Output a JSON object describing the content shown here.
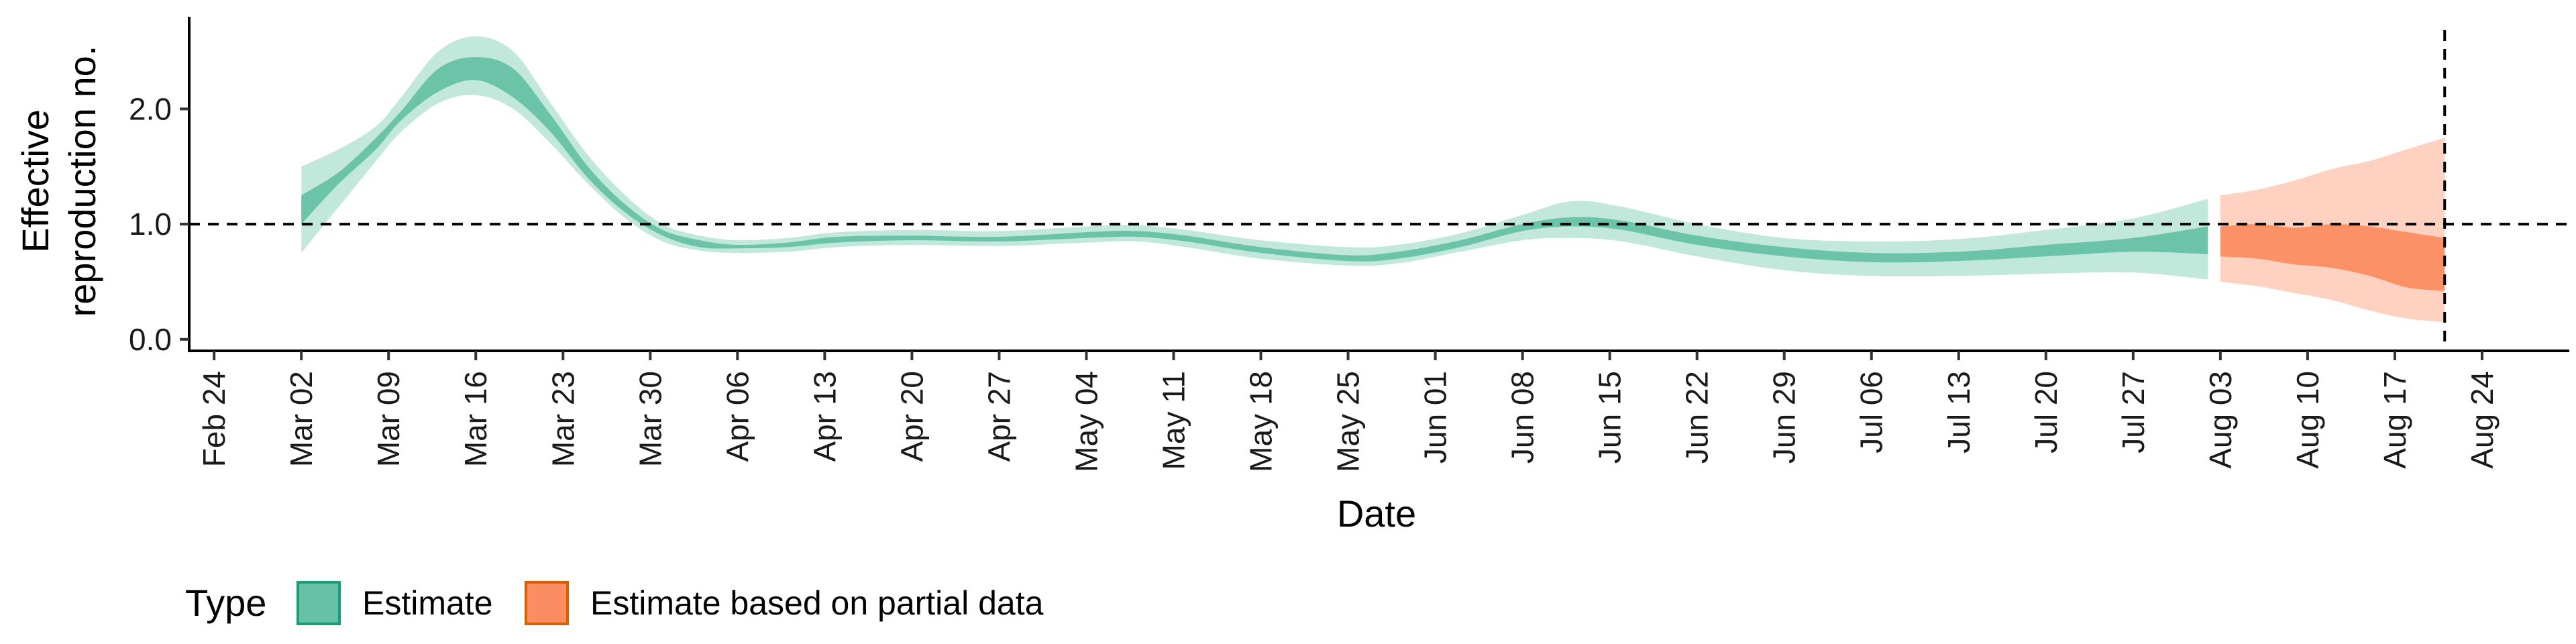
{
  "chart_data": {
    "type": "area",
    "title": "",
    "xlabel": "Date",
    "ylabel_lines": [
      "Effective",
      "reproduction no."
    ],
    "x_range": [
      "2020-02-22",
      "2020-08-31"
    ],
    "ylim": [
      -0.1,
      2.8
    ],
    "y_ticks": [
      0.0,
      1.0,
      2.0
    ],
    "y_tick_labels": [
      "0.0",
      "1.0",
      "2.0"
    ],
    "x_ticks": [
      "2020-02-24",
      "2020-03-02",
      "2020-03-09",
      "2020-03-16",
      "2020-03-23",
      "2020-03-30",
      "2020-04-06",
      "2020-04-13",
      "2020-04-20",
      "2020-04-27",
      "2020-05-04",
      "2020-05-11",
      "2020-05-18",
      "2020-05-25",
      "2020-06-01",
      "2020-06-08",
      "2020-06-15",
      "2020-06-22",
      "2020-06-29",
      "2020-07-06",
      "2020-07-13",
      "2020-07-20",
      "2020-07-27",
      "2020-08-03",
      "2020-08-10",
      "2020-08-17",
      "2020-08-24"
    ],
    "x_tick_labels": [
      "Feb 24",
      "Mar 02",
      "Mar 09",
      "Mar 16",
      "Mar 23",
      "Mar 30",
      "Apr 06",
      "Apr 13",
      "Apr 20",
      "Apr 27",
      "May 04",
      "May 11",
      "May 18",
      "May 25",
      "Jun 01",
      "Jun 08",
      "Jun 15",
      "Jun 22",
      "Jun 29",
      "Jul 06",
      "Jul 13",
      "Jul 20",
      "Jul 27",
      "Aug 03",
      "Aug 10",
      "Aug 17",
      "Aug 24"
    ],
    "reference_lines": {
      "hline_y": 1.0,
      "vline_x": "2020-08-21"
    },
    "grid": false,
    "legend": {
      "title": "Type",
      "position": "bottom-left"
    },
    "series": [
      {
        "name": "Estimate",
        "color": "#66C2A5",
        "border": "#1B9E77",
        "points": [
          {
            "x": "2020-03-02",
            "lo90": 0.75,
            "lo50": 1.0,
            "hi50": 1.25,
            "hi90": 1.5
          },
          {
            "x": "2020-03-05",
            "lo90": 1.15,
            "lo50": 1.35,
            "hi50": 1.45,
            "hi90": 1.65
          },
          {
            "x": "2020-03-08",
            "lo90": 1.55,
            "lo50": 1.65,
            "hi50": 1.75,
            "hi90": 1.85
          },
          {
            "x": "2020-03-10",
            "lo90": 1.8,
            "lo50": 1.9,
            "hi50": 1.98,
            "hi90": 2.1
          },
          {
            "x": "2020-03-13",
            "lo90": 2.05,
            "lo50": 2.15,
            "hi50": 2.35,
            "hi90": 2.5
          },
          {
            "x": "2020-03-16",
            "lo90": 2.12,
            "lo50": 2.25,
            "hi50": 2.45,
            "hi90": 2.63
          },
          {
            "x": "2020-03-19",
            "lo90": 2.0,
            "lo50": 2.1,
            "hi50": 2.35,
            "hi90": 2.5
          },
          {
            "x": "2020-03-22",
            "lo90": 1.7,
            "lo50": 1.8,
            "hi50": 1.95,
            "hi90": 2.05
          },
          {
            "x": "2020-03-25",
            "lo90": 1.35,
            "lo50": 1.4,
            "hi50": 1.5,
            "hi90": 1.6
          },
          {
            "x": "2020-03-28",
            "lo90": 1.05,
            "lo50": 1.1,
            "hi50": 1.17,
            "hi90": 1.25
          },
          {
            "x": "2020-03-31",
            "lo90": 0.85,
            "lo50": 0.9,
            "hi50": 0.95,
            "hi90": 1.0
          },
          {
            "x": "2020-04-03",
            "lo90": 0.77,
            "lo50": 0.8,
            "hi50": 0.86,
            "hi90": 0.9
          },
          {
            "x": "2020-04-06",
            "lo90": 0.75,
            "lo50": 0.79,
            "hi50": 0.82,
            "hi90": 0.86
          },
          {
            "x": "2020-04-10",
            "lo90": 0.76,
            "lo50": 0.8,
            "hi50": 0.84,
            "hi90": 0.88
          },
          {
            "x": "2020-04-14",
            "lo90": 0.8,
            "lo50": 0.84,
            "hi50": 0.89,
            "hi90": 0.93
          },
          {
            "x": "2020-04-20",
            "lo90": 0.82,
            "lo50": 0.86,
            "hi50": 0.9,
            "hi90": 0.95
          },
          {
            "x": "2020-04-27",
            "lo90": 0.81,
            "lo50": 0.85,
            "hi50": 0.89,
            "hi90": 0.94
          },
          {
            "x": "2020-05-04",
            "lo90": 0.84,
            "lo50": 0.88,
            "hi50": 0.93,
            "hi90": 0.98
          },
          {
            "x": "2020-05-08",
            "lo90": 0.85,
            "lo50": 0.89,
            "hi50": 0.94,
            "hi90": 0.99
          },
          {
            "x": "2020-05-12",
            "lo90": 0.8,
            "lo50": 0.85,
            "hi50": 0.9,
            "hi90": 0.95
          },
          {
            "x": "2020-05-18",
            "lo90": 0.7,
            "lo50": 0.75,
            "hi50": 0.8,
            "hi90": 0.86
          },
          {
            "x": "2020-05-25",
            "lo90": 0.64,
            "lo50": 0.68,
            "hi50": 0.73,
            "hi90": 0.8
          },
          {
            "x": "2020-05-29",
            "lo90": 0.66,
            "lo50": 0.7,
            "hi50": 0.76,
            "hi90": 0.82
          },
          {
            "x": "2020-06-03",
            "lo90": 0.76,
            "lo50": 0.8,
            "hi50": 0.86,
            "hi90": 0.92
          },
          {
            "x": "2020-06-08",
            "lo90": 0.86,
            "lo50": 0.94,
            "hi50": 1.0,
            "hi90": 1.08
          },
          {
            "x": "2020-06-12",
            "lo90": 0.88,
            "lo50": 0.98,
            "hi50": 1.06,
            "hi90": 1.2
          },
          {
            "x": "2020-06-16",
            "lo90": 0.85,
            "lo50": 0.95,
            "hi50": 1.03,
            "hi90": 1.15
          },
          {
            "x": "2020-06-22",
            "lo90": 0.72,
            "lo50": 0.82,
            "hi50": 0.9,
            "hi90": 1.0
          },
          {
            "x": "2020-06-29",
            "lo90": 0.6,
            "lo50": 0.72,
            "hi50": 0.8,
            "hi90": 0.88
          },
          {
            "x": "2020-07-06",
            "lo90": 0.55,
            "lo50": 0.67,
            "hi50": 0.75,
            "hi90": 0.85
          },
          {
            "x": "2020-07-13",
            "lo90": 0.55,
            "lo50": 0.68,
            "hi50": 0.76,
            "hi90": 0.87
          },
          {
            "x": "2020-07-20",
            "lo90": 0.57,
            "lo50": 0.72,
            "hi50": 0.82,
            "hi90": 0.95
          },
          {
            "x": "2020-07-27",
            "lo90": 0.58,
            "lo50": 0.76,
            "hi50": 0.88,
            "hi90": 1.05
          },
          {
            "x": "2020-08-02",
            "lo90": 0.52,
            "lo50": 0.74,
            "hi50": 0.98,
            "hi90": 1.22
          }
        ]
      },
      {
        "name": "Estimate based on partial data",
        "color": "#FC8D62",
        "border": "#D95F02",
        "points": [
          {
            "x": "2020-08-03",
            "lo90": 0.5,
            "lo50": 0.72,
            "hi50": 0.98,
            "hi90": 1.25
          },
          {
            "x": "2020-08-06",
            "lo90": 0.46,
            "lo50": 0.7,
            "hi50": 1.0,
            "hi90": 1.3
          },
          {
            "x": "2020-08-09",
            "lo90": 0.4,
            "lo50": 0.65,
            "hi50": 0.97,
            "hi90": 1.38
          },
          {
            "x": "2020-08-12",
            "lo90": 0.34,
            "lo50": 0.62,
            "hi50": 1.0,
            "hi90": 1.48
          },
          {
            "x": "2020-08-15",
            "lo90": 0.25,
            "lo50": 0.55,
            "hi50": 0.98,
            "hi90": 1.55
          },
          {
            "x": "2020-08-18",
            "lo90": 0.18,
            "lo50": 0.45,
            "hi50": 0.93,
            "hi90": 1.65
          },
          {
            "x": "2020-08-21",
            "lo90": 0.15,
            "lo50": 0.42,
            "hi50": 0.88,
            "hi90": 1.75
          }
        ]
      }
    ]
  }
}
